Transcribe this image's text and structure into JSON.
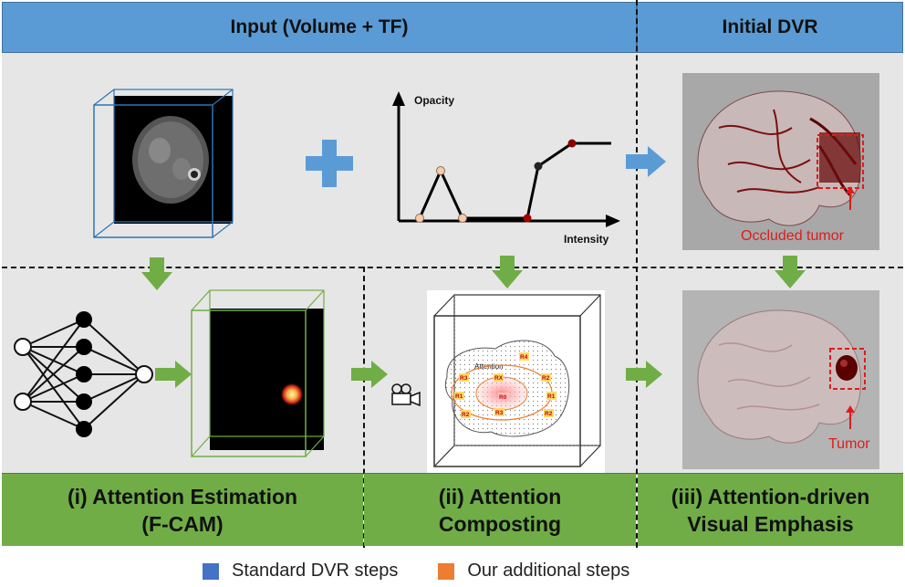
{
  "headers": {
    "input": "Input (Volume + TF)",
    "initial_dvr": "Initial DVR"
  },
  "tf_plot": {
    "ylabel": "Opacity",
    "xlabel": "Intensity"
  },
  "dvr": {
    "occluded_label": "Occluded tumor",
    "tumor_label": "Tumor"
  },
  "attention_map": {
    "title": "Attention",
    "regions": [
      "R4",
      "R3",
      "RX",
      "R2",
      "R1",
      "R0",
      "R1",
      "R2",
      "R3",
      "R2"
    ]
  },
  "footers": {
    "step1_line1": "(i) Attention Estimation",
    "step1_line2": "(F-CAM)",
    "step2_line1": "(ii) Attention",
    "step2_line2": "Composting",
    "step3_line1": "(iii) Attention-driven",
    "step3_line2": "Visual Emphasis"
  },
  "legend": {
    "standard": "Standard DVR steps",
    "additional": "Our additional steps",
    "standard_color": "#4472c4",
    "additional_color": "#ed7d31"
  }
}
